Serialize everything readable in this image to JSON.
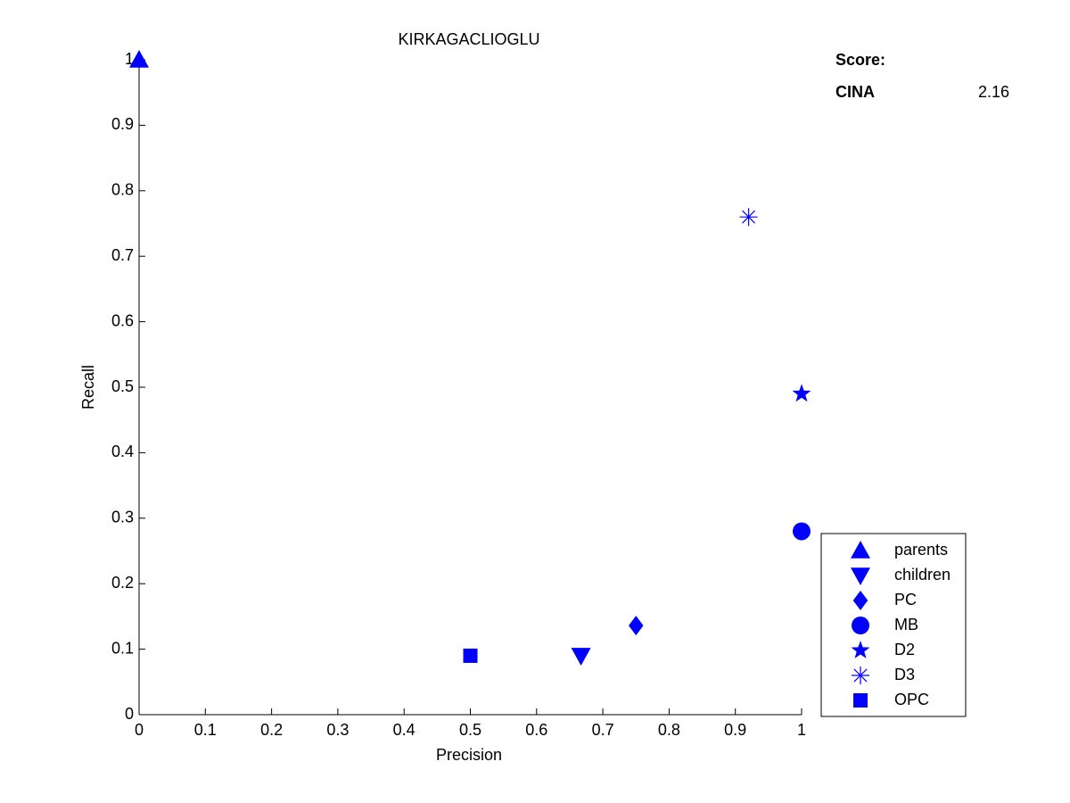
{
  "chart_data": {
    "type": "scatter",
    "title": "KIRKAGACLIOGLU",
    "x_label": "Precision",
    "y_label": "Recall",
    "xlim": [
      0,
      1
    ],
    "ylim": [
      0,
      1
    ],
    "xticks": [
      0,
      0.1,
      0.2,
      0.3,
      0.4,
      0.5,
      0.6,
      0.7,
      0.8,
      0.9,
      1
    ],
    "yticks": [
      0,
      0.1,
      0.2,
      0.3,
      0.4,
      0.5,
      0.6,
      0.7,
      0.8,
      0.9,
      1
    ],
    "grid": false,
    "legend_position": "lower-right",
    "series": [
      {
        "name": "parents",
        "marker": "triangle-up",
        "color": "#0000ff",
        "x": [
          0
        ],
        "values": [
          1
        ]
      },
      {
        "name": "children",
        "marker": "triangle-down",
        "color": "#0000ff",
        "x": [
          0.667
        ],
        "values": [
          0.09
        ]
      },
      {
        "name": "PC",
        "marker": "diamond",
        "color": "#0000ff",
        "x": [
          0.75
        ],
        "values": [
          0.136
        ]
      },
      {
        "name": "MB",
        "marker": "circle",
        "color": "#0000ff",
        "x": [
          1
        ],
        "values": [
          0.28
        ]
      },
      {
        "name": "D2",
        "marker": "star",
        "color": "#0000ff",
        "x": [
          1
        ],
        "values": [
          0.49
        ]
      },
      {
        "name": "D3",
        "marker": "asterisk",
        "color": "#0000ff",
        "x": [
          0.92
        ],
        "values": [
          0.76
        ]
      },
      {
        "name": "OPC",
        "marker": "square",
        "color": "#0000ff",
        "x": [
          0.5
        ],
        "values": [
          0.09
        ]
      }
    ],
    "score": {
      "label": "Score:",
      "name": "CINA",
      "name_color": "#0000ff",
      "value": 2.16
    }
  }
}
